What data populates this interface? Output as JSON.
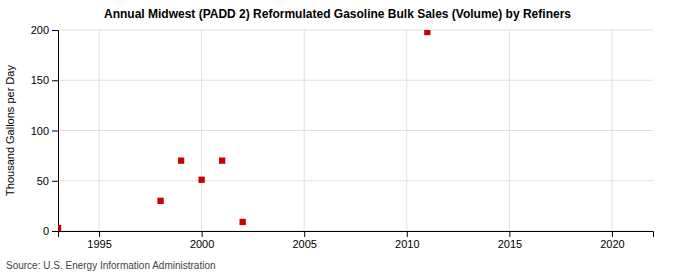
{
  "chart_data": {
    "type": "scatter",
    "title": "Annual Midwest (PADD 2) Reformulated Gasoline Bulk Sales (Volume) by Refiners",
    "ylabel": "Thousand Gallons per Day",
    "source": "Source: U.S. Energy Information Administration",
    "x": [
      1993,
      1998,
      1999,
      2000,
      2001,
      2002,
      2011
    ],
    "values": [
      3,
      30,
      70,
      51,
      70,
      9,
      198
    ],
    "color": "#cc0000",
    "marker": "square",
    "xlim": [
      1993,
      2022
    ],
    "ylim": [
      0,
      200
    ],
    "xticks": [
      1995,
      2000,
      2005,
      2010,
      2015,
      2020
    ],
    "yticks": [
      0,
      50,
      100,
      150,
      200
    ],
    "grid": true
  }
}
